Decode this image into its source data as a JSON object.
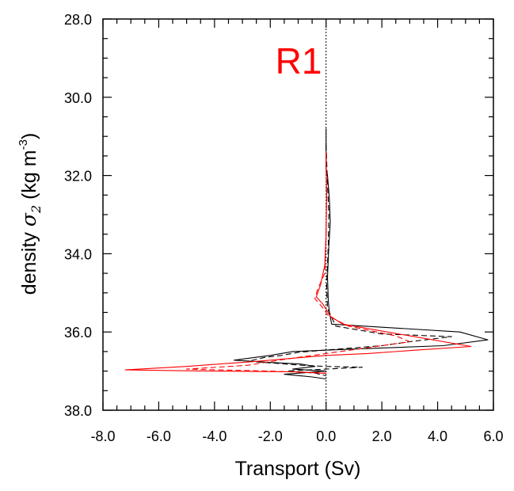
{
  "chart_data": {
    "type": "line",
    "title": "R1",
    "title_color": "#ff0000",
    "xlabel": "Transport (Sv)",
    "ylabel_prefix": "density ",
    "ylabel_symbol": "σ",
    "ylabel_subscript": "2",
    "ylabel_units_pre": " (kg m",
    "ylabel_units_sup": "-3",
    "ylabel_units_post": ")",
    "xlim": [
      -8.0,
      6.0
    ],
    "ylim": [
      28.0,
      38.0
    ],
    "y_inverted": true,
    "x_ticks": [
      -8.0,
      -6.0,
      -4.0,
      -2.0,
      0.0,
      2.0,
      4.0,
      6.0
    ],
    "x_tick_labels": [
      "-8.0",
      "-6.0",
      "-4.0",
      "-2.0",
      "0.0",
      "2.0",
      "4.0",
      "6.0"
    ],
    "y_ticks": [
      28.0,
      30.0,
      32.0,
      34.0,
      36.0,
      38.0
    ],
    "y_tick_labels": [
      "28.0",
      "30.0",
      "32.0",
      "34.0",
      "36.0",
      "38.0"
    ],
    "grid": false,
    "zero_reference_line": {
      "x": 0.0,
      "style": "dotted",
      "color": "#000000"
    },
    "series": [
      {
        "color": "#000000",
        "style": "solid",
        "points": [
          [
            0.0,
            30.8
          ],
          [
            0.0,
            31.8
          ],
          [
            0.05,
            32.0
          ],
          [
            0.12,
            32.6
          ],
          [
            0.15,
            33.2
          ],
          [
            0.1,
            33.8
          ],
          [
            0.05,
            34.6
          ],
          [
            0.08,
            35.2
          ],
          [
            0.12,
            35.5
          ],
          [
            0.2,
            35.8
          ],
          [
            4.8,
            36.0
          ],
          [
            5.8,
            36.2
          ],
          [
            4.2,
            36.35
          ],
          [
            0.5,
            36.45
          ],
          [
            -1.2,
            36.5
          ],
          [
            -2.0,
            36.6
          ],
          [
            -3.3,
            36.72
          ],
          [
            -2.0,
            36.78
          ],
          [
            -0.9,
            36.82
          ],
          [
            -0.4,
            36.88
          ],
          [
            -1.2,
            36.95
          ],
          [
            0.0,
            37.0
          ],
          [
            -1.5,
            37.08
          ],
          [
            -0.5,
            37.15
          ],
          [
            0.0,
            37.2
          ]
        ]
      },
      {
        "color": "#000000",
        "style": "dashed",
        "points": [
          [
            0.0,
            31.2
          ],
          [
            0.05,
            32.2
          ],
          [
            0.1,
            33.0
          ],
          [
            0.08,
            33.8
          ],
          [
            0.02,
            34.8
          ],
          [
            0.05,
            35.4
          ],
          [
            0.35,
            35.85
          ],
          [
            2.0,
            36.05
          ],
          [
            4.5,
            36.12
          ],
          [
            3.0,
            36.25
          ],
          [
            2.0,
            36.35
          ],
          [
            0.2,
            36.45
          ],
          [
            -1.0,
            36.52
          ],
          [
            -1.6,
            36.6
          ],
          [
            -2.2,
            36.65
          ],
          [
            -2.8,
            36.75
          ],
          [
            -1.8,
            36.8
          ],
          [
            -0.9,
            36.85
          ],
          [
            0.0,
            36.88
          ],
          [
            1.3,
            36.9
          ],
          [
            0.0,
            36.95
          ],
          [
            -0.6,
            36.97
          ],
          [
            -1.4,
            37.0
          ],
          [
            -0.4,
            37.05
          ],
          [
            0.0,
            37.12
          ]
        ]
      },
      {
        "color": "#ff0000",
        "style": "solid",
        "points": [
          [
            0.0,
            31.4
          ],
          [
            0.02,
            32.5
          ],
          [
            0.0,
            33.5
          ],
          [
            -0.05,
            34.3
          ],
          [
            -0.2,
            34.8
          ],
          [
            -0.35,
            35.1
          ],
          [
            -0.1,
            35.3
          ],
          [
            0.15,
            35.6
          ],
          [
            0.6,
            35.8
          ],
          [
            3.0,
            36.1
          ],
          [
            5.2,
            36.37
          ],
          [
            3.5,
            36.45
          ],
          [
            1.5,
            36.55
          ],
          [
            0.0,
            36.6
          ],
          [
            -2.5,
            36.75
          ],
          [
            -5.0,
            36.88
          ],
          [
            -7.2,
            36.97
          ],
          [
            -4.0,
            37.0
          ],
          [
            -1.0,
            37.02
          ],
          [
            0.0,
            37.06
          ]
        ]
      },
      {
        "color": "#ff0000",
        "style": "dashed",
        "points": [
          [
            0.0,
            31.6
          ],
          [
            0.02,
            32.6
          ],
          [
            0.0,
            33.6
          ],
          [
            -0.05,
            34.5
          ],
          [
            -0.3,
            34.9
          ],
          [
            -0.4,
            35.15
          ],
          [
            -0.15,
            35.35
          ],
          [
            0.1,
            35.6
          ],
          [
            0.8,
            35.85
          ],
          [
            2.5,
            36.1
          ],
          [
            3.0,
            36.25
          ],
          [
            1.5,
            36.4
          ],
          [
            0.0,
            36.55
          ],
          [
            -1.5,
            36.7
          ],
          [
            -2.8,
            36.85
          ],
          [
            -5.0,
            36.95
          ],
          [
            -2.0,
            37.0
          ],
          [
            0.0,
            37.05
          ]
        ]
      }
    ]
  }
}
